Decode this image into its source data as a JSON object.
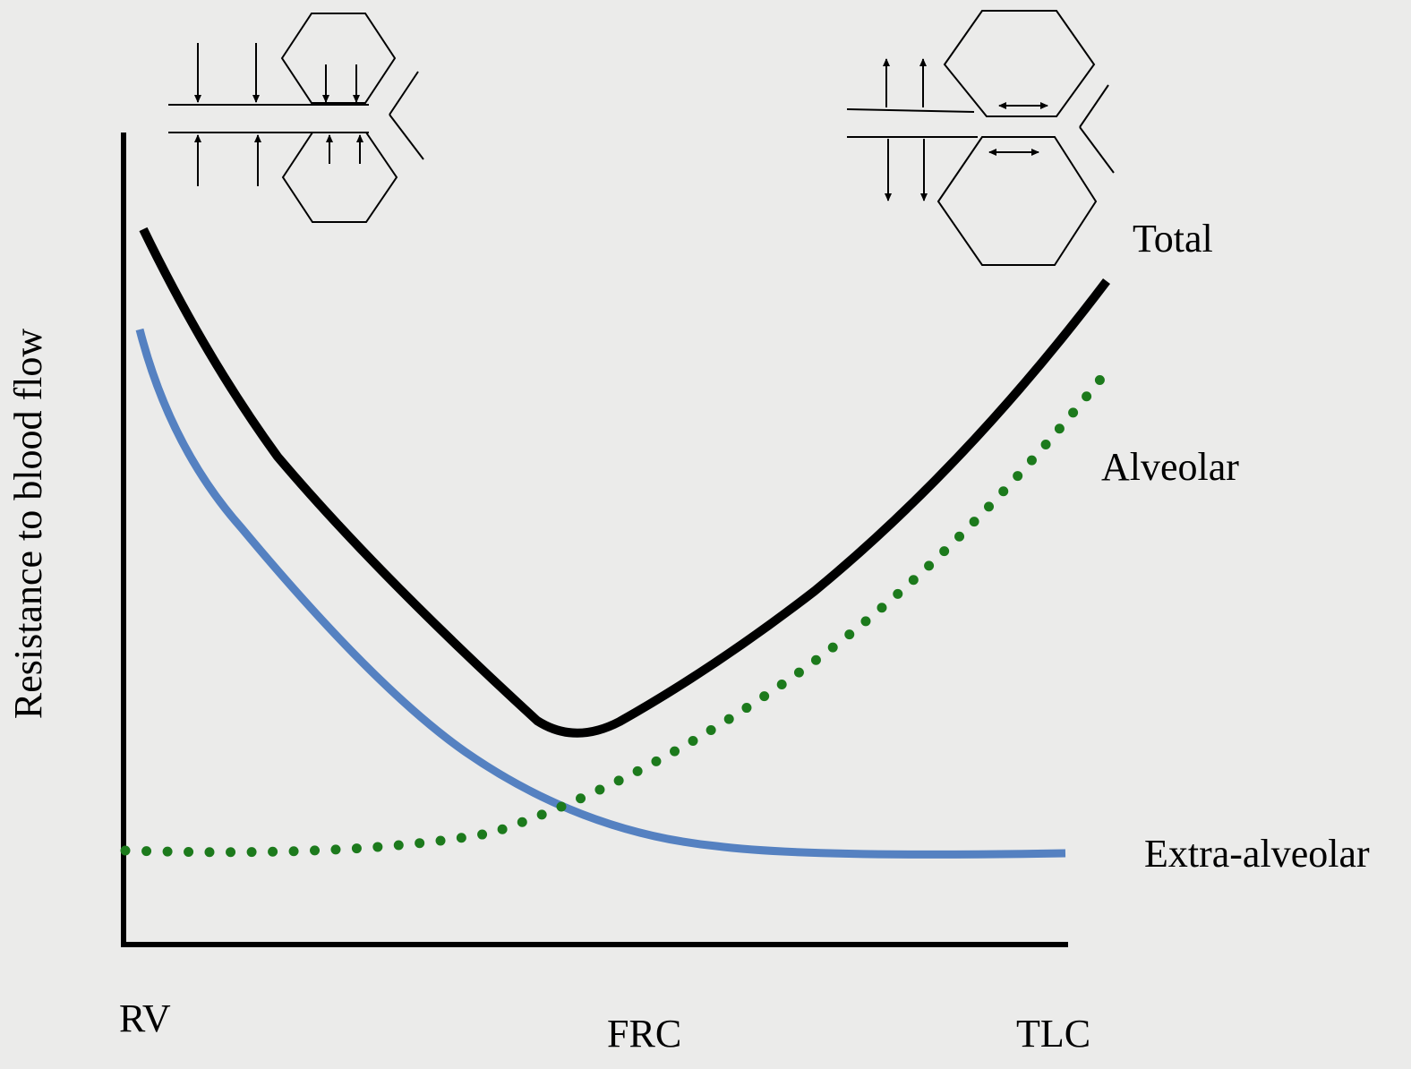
{
  "axis_labels": {
    "y": "Resistance to blood flow",
    "x_start": "RV",
    "x_middle": "FRC",
    "x_end": "TLC"
  },
  "curve_labels": {
    "total": "Total",
    "alveolar": "Alveolar",
    "extra_alveolar": "Extra-alveolar"
  }
}
